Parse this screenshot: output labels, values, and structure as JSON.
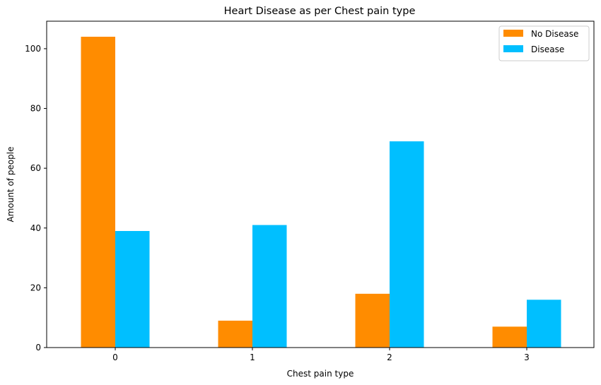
{
  "chart_data": {
    "type": "bar",
    "title": "Heart Disease as per Chest pain type",
    "xlabel": "Chest pain type",
    "ylabel": "Amount of people",
    "categories": [
      "0",
      "1",
      "2",
      "3"
    ],
    "series": [
      {
        "name": "No Disease",
        "color": "#ff8c00",
        "values": [
          104,
          9,
          18,
          7
        ]
      },
      {
        "name": "Disease",
        "color": "#00bfff",
        "values": [
          39,
          41,
          69,
          16
        ]
      }
    ],
    "ylim": [
      0,
      109.2
    ],
    "yticks": [
      0,
      20,
      40,
      60,
      80,
      100
    ],
    "grid": false,
    "legend_position": "top-right"
  }
}
